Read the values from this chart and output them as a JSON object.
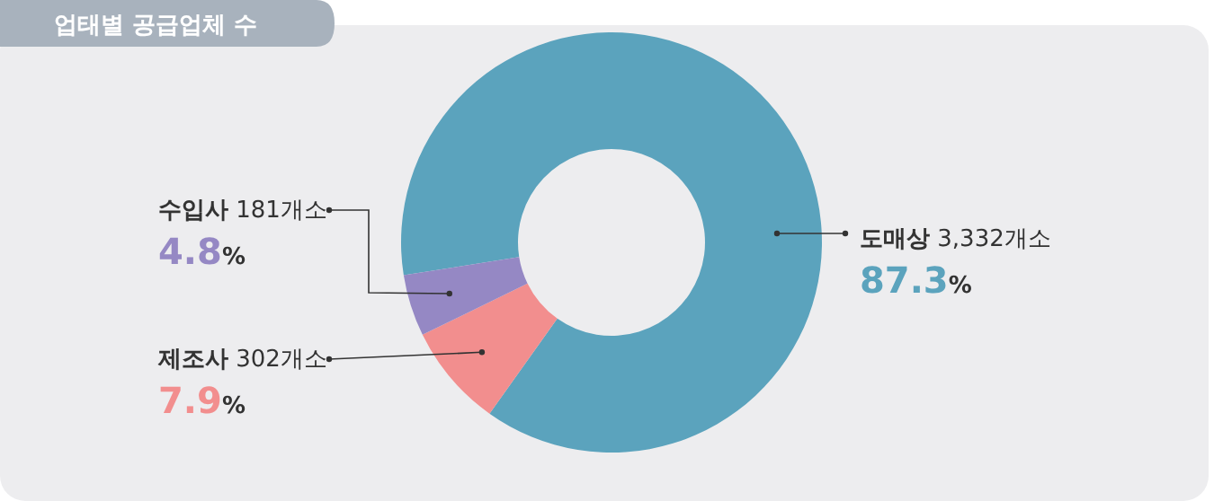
{
  "chart_data": {
    "type": "donut",
    "title": "업태별 공급업체 수",
    "categories": [
      "도매상",
      "제조사",
      "수입사"
    ],
    "values": [
      3332,
      302,
      181
    ],
    "value_labels": [
      "3,332개소",
      "302개소",
      "181개소"
    ],
    "colors": [
      "#5ba3bd",
      "#f28e8e",
      "#9588c4"
    ],
    "annotations": [
      "87.3%",
      "7.9%",
      "4.8%"
    ]
  }
}
